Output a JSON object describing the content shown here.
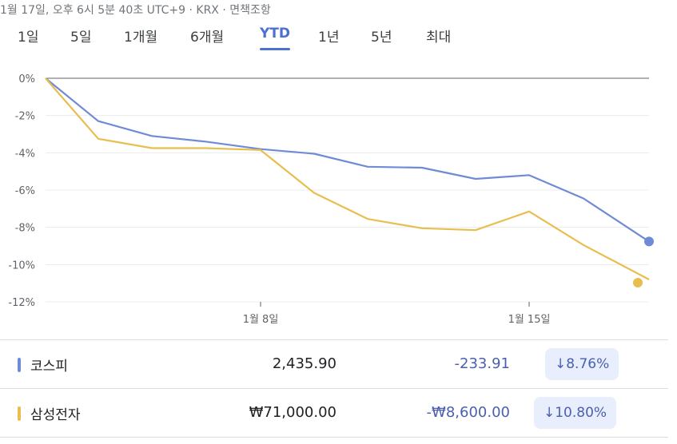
{
  "header": {
    "meta": "1월 17일, 오후 6시 5분 40초 UTC+9 · KRX · 면책조항"
  },
  "tabs": [
    {
      "label": "1일",
      "active": false
    },
    {
      "label": "5일",
      "active": false
    },
    {
      "label": "1개월",
      "active": false
    },
    {
      "label": "6개월",
      "active": false
    },
    {
      "label": "YTD",
      "active": true
    },
    {
      "label": "1년",
      "active": false
    },
    {
      "label": "5년",
      "active": false
    },
    {
      "label": "최대",
      "active": false
    }
  ],
  "chart_data": {
    "type": "line",
    "xlabel": "",
    "ylabel": "",
    "x_ticks": [
      "1월 8일",
      "1월 15일"
    ],
    "y_ticks": [
      "0%",
      "-2%",
      "-4%",
      "-6%",
      "-8%",
      "-10%",
      "-12%"
    ],
    "ylim": [
      -12,
      0
    ],
    "grid": true,
    "series": [
      {
        "name": "코스피",
        "color": "#6f8bd6",
        "dates": [
          "1월 2일",
          "1월 3일",
          "1월 4일",
          "1월 5일",
          "1월 8일",
          "1월 9일",
          "1월 10일",
          "1월 11일",
          "1월 12일",
          "1월 15일",
          "1월 16일",
          "1월 17일"
        ],
        "values": [
          0,
          -2.3,
          -3.1,
          -3.4,
          -3.8,
          -4.05,
          -4.75,
          -4.8,
          -5.4,
          -5.2,
          -6.45,
          -8.76
        ]
      },
      {
        "name": "삼성전자",
        "color": "#e8be4f",
        "dates": [
          "1월 2일",
          "1월 3일",
          "1월 4일",
          "1월 5일",
          "1월 8일",
          "1월 9일",
          "1월 10일",
          "1월 11일",
          "1월 12일",
          "1월 15일",
          "1월 16일",
          "1월 17일"
        ],
        "values": [
          0,
          -3.25,
          -3.75,
          -3.75,
          -3.85,
          -6.15,
          -7.55,
          -8.05,
          -8.15,
          -7.15,
          -8.95,
          -10.8
        ]
      }
    ]
  },
  "legend": [
    {
      "name": "코스피",
      "price": "2,435.90",
      "change": "-233.91",
      "percent": "↓8.76%",
      "color": "#6f8bd6"
    },
    {
      "name": "삼성전자",
      "price": "₩71,000.00",
      "change": "-₩8,600.00",
      "percent": "↓10.80%",
      "color": "#e8be4f"
    }
  ]
}
